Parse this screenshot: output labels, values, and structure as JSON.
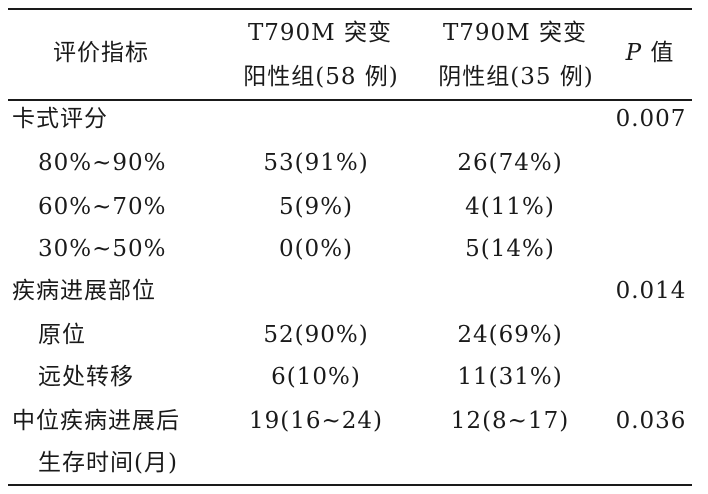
{
  "header": {
    "indicator": "评价指标",
    "positive_line1": "T790M 突变",
    "positive_line2": "阳性组(58 例)",
    "negative_line1": "T790M 突变",
    "negative_line2": "阴性组(35 例)",
    "p_symbol": "P",
    "p_suffix": " 值"
  },
  "rows": [
    {
      "label": "卡式评分",
      "positive": "",
      "negative": "",
      "p": "0.007"
    },
    {
      "label": "80%~90%",
      "positive": "53(91%)",
      "negative": "26(74%)",
      "p": ""
    },
    {
      "label": "60%~70%",
      "positive": "5(9%)",
      "negative": "4(11%)",
      "p": ""
    },
    {
      "label": "30%~50%",
      "positive": "0(0%)",
      "negative": "5(14%)",
      "p": ""
    },
    {
      "label": "疾病进展部位",
      "positive": "",
      "negative": "",
      "p": "0.014"
    },
    {
      "label": "原位",
      "positive": "52(90%)",
      "negative": "24(69%)",
      "p": ""
    },
    {
      "label": "远处转移",
      "positive": "6(10%)",
      "negative": "11(31%)",
      "p": ""
    },
    {
      "label": "中位疾病进展后",
      "positive": "19(16~24)",
      "negative": "12(8~17)",
      "p": "0.036"
    },
    {
      "label": "生存时间(月)",
      "positive": "",
      "negative": "",
      "p": ""
    }
  ]
}
